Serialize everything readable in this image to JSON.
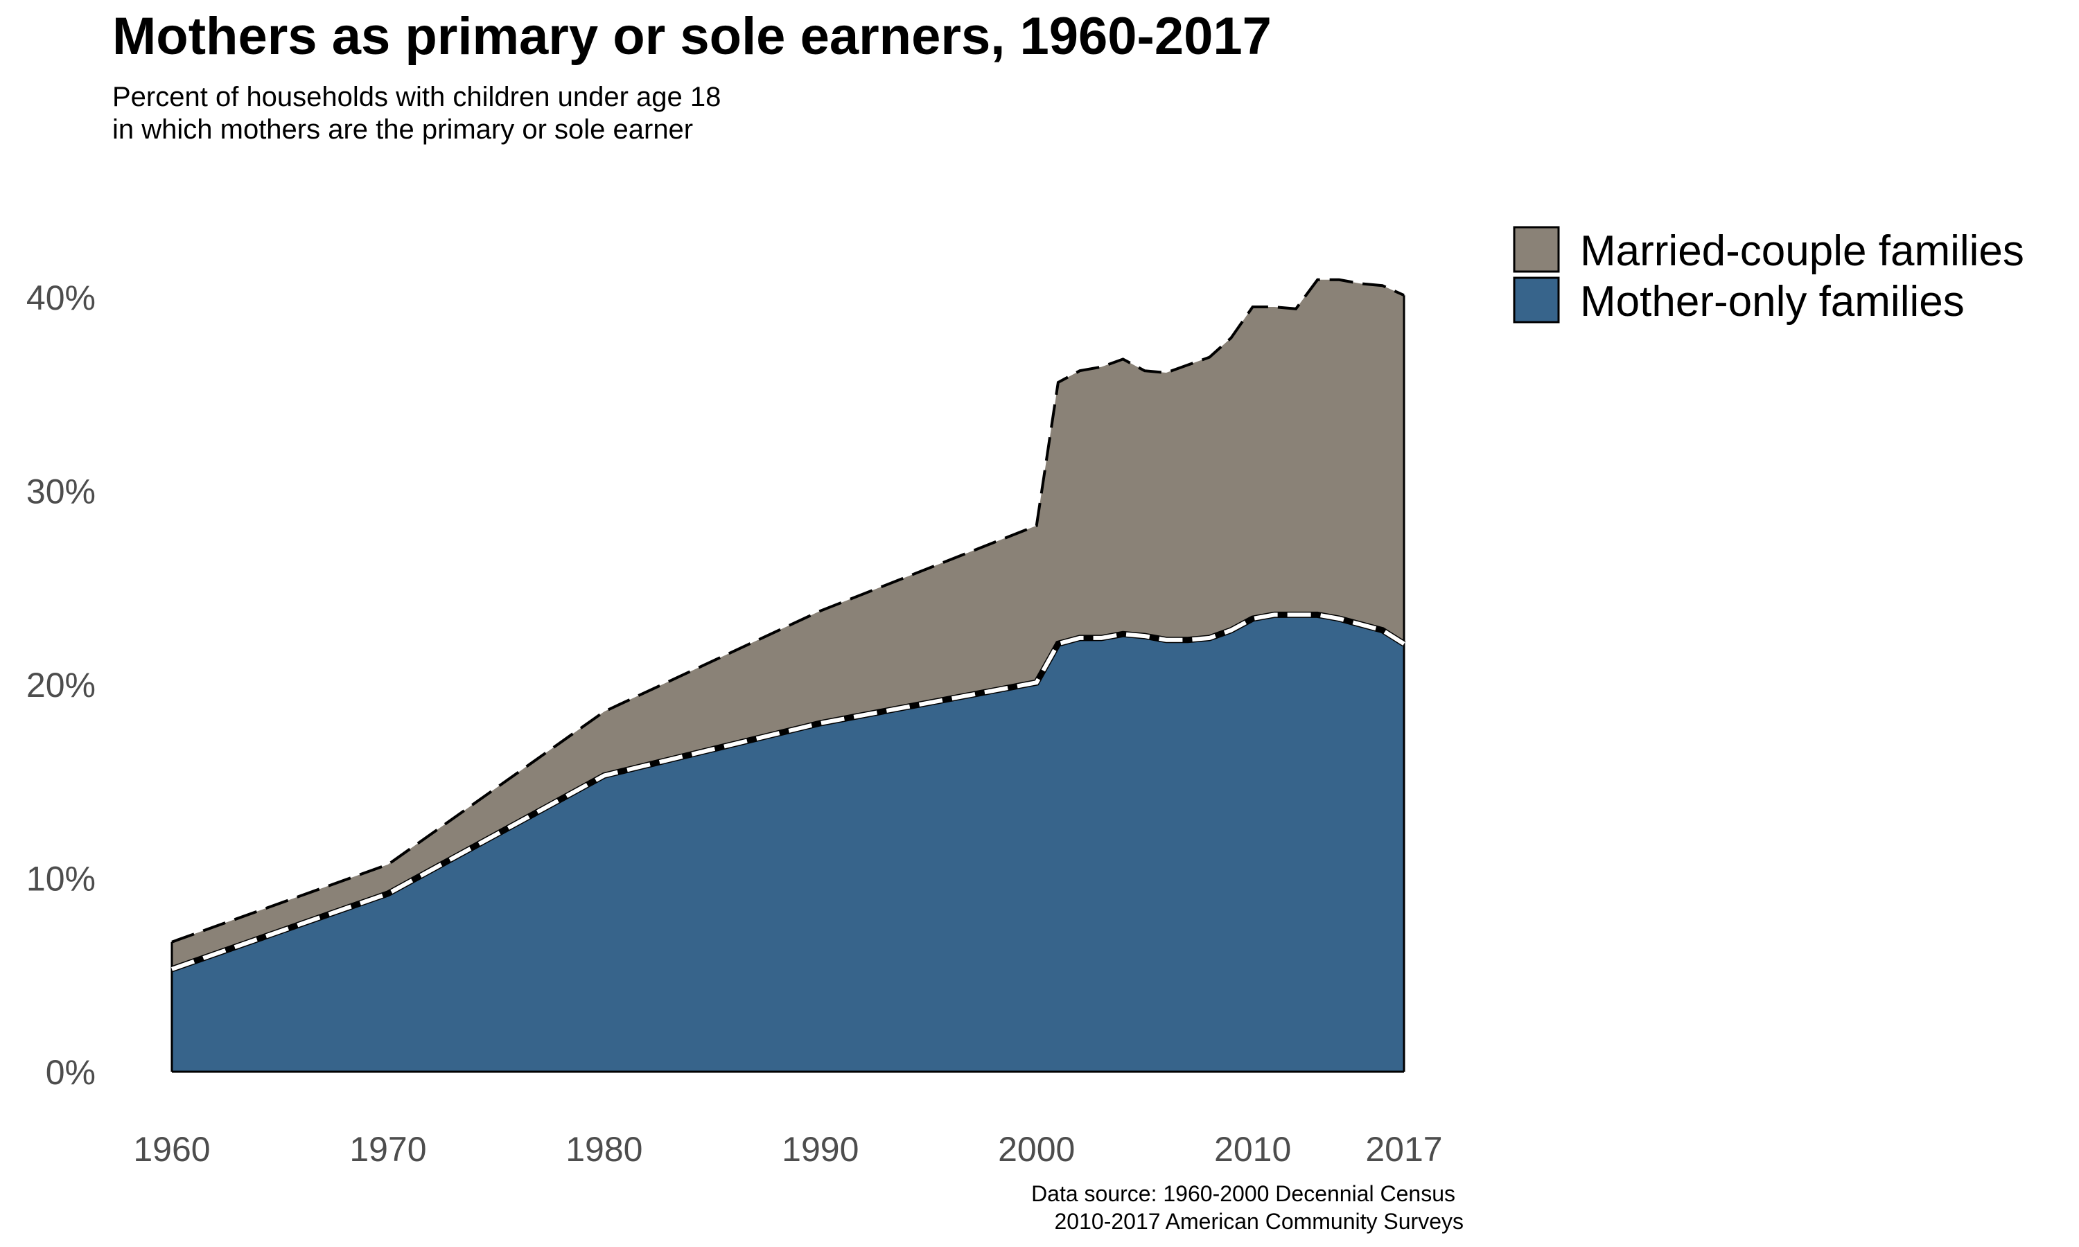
{
  "chart_data": {
    "type": "area",
    "stacked": true,
    "title": "Mothers as primary or sole earners, 1960-2017",
    "subtitle_lines": [
      "Percent of households with children under age 18",
      "in which mothers are the primary or sole earner"
    ],
    "xlabel": "",
    "ylabel": "",
    "xlim": [
      1960,
      2017
    ],
    "ylim": [
      0,
      42
    ],
    "x_ticks": [
      1960,
      1970,
      1980,
      1990,
      2000,
      2010,
      2017
    ],
    "y_ticks": [
      0,
      10,
      20,
      30,
      40
    ],
    "y_tick_labels": [
      "0%",
      "10%",
      "20%",
      "30%",
      "40%"
    ],
    "grid": false,
    "legend_position": "top-right",
    "series": [
      {
        "name": "Mother-only families",
        "color": "#37648b",
        "x": [
          1960,
          1970,
          1980,
          1990,
          2000,
          2001,
          2002,
          2003,
          2004,
          2005,
          2006,
          2007,
          2008,
          2009,
          2010,
          2011,
          2012,
          2013,
          2014,
          2015,
          2016,
          2017
        ],
        "values": [
          5.3,
          9.2,
          15.3,
          18.0,
          20.1,
          22.1,
          22.4,
          22.4,
          22.6,
          22.5,
          22.3,
          22.3,
          22.4,
          22.8,
          23.4,
          23.6,
          23.6,
          23.6,
          23.4,
          23.1,
          22.8,
          22.1
        ]
      },
      {
        "name": "Married-couple families",
        "color": "#8a8277",
        "x": [
          1960,
          1970,
          1980,
          1990,
          2000,
          2001,
          2002,
          2003,
          2004,
          2005,
          2006,
          2007,
          2008,
          2009,
          2010,
          2011,
          2012,
          2013,
          2014,
          2015,
          2016,
          2017
        ],
        "values": [
          1.4,
          1.5,
          3.3,
          5.8,
          8.1,
          13.5,
          13.8,
          14.0,
          14.2,
          13.7,
          13.8,
          14.2,
          14.5,
          15.1,
          16.1,
          15.9,
          15.8,
          17.3,
          17.5,
          17.6,
          17.8,
          18.0
        ]
      }
    ],
    "caption_lines": [
      "Data source: 1960-2000 Decennial Census",
      "2010-2017 American Community Surveys"
    ]
  }
}
